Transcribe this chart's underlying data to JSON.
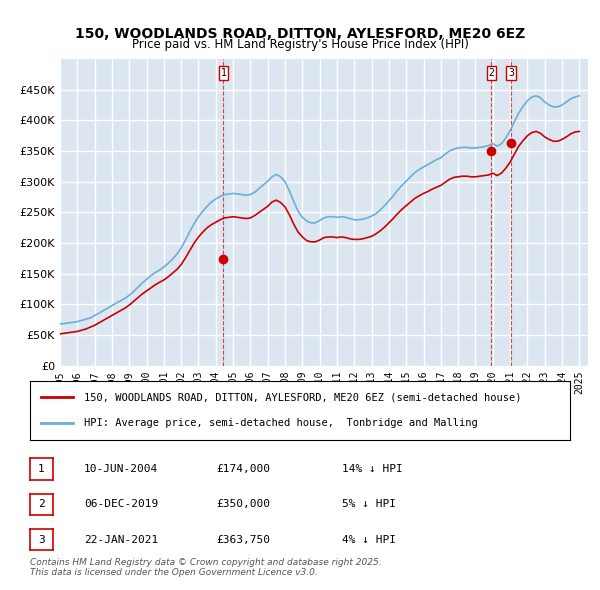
{
  "title": "150, WOODLANDS ROAD, DITTON, AYLESFORD, ME20 6EZ",
  "subtitle": "Price paid vs. HM Land Registry's House Price Index (HPI)",
  "ylabel": "",
  "ylim": [
    0,
    500000
  ],
  "yticks": [
    0,
    50000,
    100000,
    150000,
    200000,
    250000,
    300000,
    350000,
    400000,
    450000
  ],
  "xlim_start": 1995.0,
  "xlim_end": 2025.5,
  "bg_color": "#dce6f1",
  "plot_bg": "#dce6f1",
  "grid_color": "#ffffff",
  "hpi_color": "#6baed6",
  "price_color": "#cc0000",
  "transactions": [
    {
      "date": 2004.44,
      "price": 174000,
      "label": "1"
    },
    {
      "date": 2019.92,
      "price": 350000,
      "label": "2"
    },
    {
      "date": 2021.06,
      "price": 363750,
      "label": "3"
    }
  ],
  "transaction_labels": [
    {
      "num": "1",
      "date": "10-JUN-2004",
      "price": "£174,000",
      "pct": "14% ↓ HPI"
    },
    {
      "num": "2",
      "date": "06-DEC-2019",
      "price": "£350,000",
      "pct": "5% ↓ HPI"
    },
    {
      "num": "3",
      "date": "22-JAN-2021",
      "price": "£363,750",
      "pct": "4% ↓ HPI"
    }
  ],
  "legend_line1": "150, WOODLANDS ROAD, DITTON, AYLESFORD, ME20 6EZ (semi-detached house)",
  "legend_line2": "HPI: Average price, semi-detached house,  Tonbridge and Malling",
  "footer": "Contains HM Land Registry data © Crown copyright and database right 2025.\nThis data is licensed under the Open Government Licence v3.0.",
  "hpi_data_x": [
    1995.0,
    1995.25,
    1995.5,
    1995.75,
    1996.0,
    1996.25,
    1996.5,
    1996.75,
    1997.0,
    1997.25,
    1997.5,
    1997.75,
    1998.0,
    1998.25,
    1998.5,
    1998.75,
    1999.0,
    1999.25,
    1999.5,
    1999.75,
    2000.0,
    2000.25,
    2000.5,
    2000.75,
    2001.0,
    2001.25,
    2001.5,
    2001.75,
    2002.0,
    2002.25,
    2002.5,
    2002.75,
    2003.0,
    2003.25,
    2003.5,
    2003.75,
    2004.0,
    2004.25,
    2004.5,
    2004.75,
    2005.0,
    2005.25,
    2005.5,
    2005.75,
    2006.0,
    2006.25,
    2006.5,
    2006.75,
    2007.0,
    2007.25,
    2007.5,
    2007.75,
    2008.0,
    2008.25,
    2008.5,
    2008.75,
    2009.0,
    2009.25,
    2009.5,
    2009.75,
    2010.0,
    2010.25,
    2010.5,
    2010.75,
    2011.0,
    2011.25,
    2011.5,
    2011.75,
    2012.0,
    2012.25,
    2012.5,
    2012.75,
    2013.0,
    2013.25,
    2013.5,
    2013.75,
    2014.0,
    2014.25,
    2014.5,
    2014.75,
    2015.0,
    2015.25,
    2015.5,
    2015.75,
    2016.0,
    2016.25,
    2016.5,
    2016.75,
    2017.0,
    2017.25,
    2017.5,
    2017.75,
    2018.0,
    2018.25,
    2018.5,
    2018.75,
    2019.0,
    2019.25,
    2019.5,
    2019.75,
    2020.0,
    2020.25,
    2020.5,
    2020.75,
    2021.0,
    2021.25,
    2021.5,
    2021.75,
    2022.0,
    2022.25,
    2022.5,
    2022.75,
    2023.0,
    2023.25,
    2023.5,
    2023.75,
    2024.0,
    2024.25,
    2024.5,
    2024.75,
    2025.0
  ],
  "hpi_data_y": [
    68000,
    69000,
    70000,
    71000,
    72000,
    74000,
    76000,
    78000,
    82000,
    86000,
    90000,
    94000,
    98000,
    102000,
    106000,
    110000,
    115000,
    121000,
    128000,
    135000,
    141000,
    147000,
    152000,
    156000,
    161000,
    167000,
    174000,
    182000,
    192000,
    205000,
    219000,
    232000,
    243000,
    252000,
    260000,
    267000,
    272000,
    276000,
    279000,
    280000,
    281000,
    280000,
    279000,
    278000,
    279000,
    283000,
    289000,
    295000,
    301000,
    308000,
    312000,
    308000,
    300000,
    285000,
    268000,
    252000,
    242000,
    236000,
    233000,
    233000,
    237000,
    241000,
    243000,
    243000,
    242000,
    243000,
    242000,
    240000,
    238000,
    238000,
    239000,
    241000,
    244000,
    248000,
    254000,
    261000,
    269000,
    277000,
    286000,
    294000,
    301000,
    308000,
    315000,
    320000,
    324000,
    328000,
    332000,
    336000,
    339000,
    345000,
    350000,
    353000,
    355000,
    356000,
    356000,
    355000,
    355000,
    356000,
    357000,
    359000,
    362000,
    358000,
    362000,
    371000,
    383000,
    398000,
    412000,
    423000,
    432000,
    438000,
    440000,
    437000,
    430000,
    425000,
    422000,
    422000,
    425000,
    430000,
    435000,
    438000,
    440000
  ],
  "price_data_x": [
    1995.0,
    1995.25,
    1995.5,
    1995.75,
    1996.0,
    1996.25,
    1996.5,
    1996.75,
    1997.0,
    1997.25,
    1997.5,
    1997.75,
    1998.0,
    1998.25,
    1998.5,
    1998.75,
    1999.0,
    1999.25,
    1999.5,
    1999.75,
    2000.0,
    2000.25,
    2000.5,
    2000.75,
    2001.0,
    2001.25,
    2001.5,
    2001.75,
    2002.0,
    2002.25,
    2002.5,
    2002.75,
    2003.0,
    2003.25,
    2003.5,
    2003.75,
    2004.0,
    2004.25,
    2004.5,
    2004.75,
    2005.0,
    2005.25,
    2005.5,
    2005.75,
    2006.0,
    2006.25,
    2006.5,
    2006.75,
    2007.0,
    2007.25,
    2007.5,
    2007.75,
    2008.0,
    2008.25,
    2008.5,
    2008.75,
    2009.0,
    2009.25,
    2009.5,
    2009.75,
    2010.0,
    2010.25,
    2010.5,
    2010.75,
    2011.0,
    2011.25,
    2011.5,
    2011.75,
    2012.0,
    2012.25,
    2012.5,
    2012.75,
    2013.0,
    2013.25,
    2013.5,
    2013.75,
    2014.0,
    2014.25,
    2014.5,
    2014.75,
    2015.0,
    2015.25,
    2015.5,
    2015.75,
    2016.0,
    2016.25,
    2016.5,
    2016.75,
    2017.0,
    2017.25,
    2017.5,
    2017.75,
    2018.0,
    2018.25,
    2018.5,
    2018.75,
    2019.0,
    2019.25,
    2019.5,
    2019.75,
    2020.0,
    2020.25,
    2020.5,
    2020.75,
    2021.0,
    2021.25,
    2021.5,
    2021.75,
    2022.0,
    2022.25,
    2022.5,
    2022.75,
    2023.0,
    2023.25,
    2023.5,
    2023.75,
    2024.0,
    2024.25,
    2024.5,
    2024.75,
    2025.0
  ],
  "price_data_y": [
    52000,
    53000,
    54000,
    55000,
    56000,
    58000,
    60000,
    63000,
    66000,
    70000,
    74000,
    78000,
    82000,
    86000,
    90000,
    94000,
    99000,
    105000,
    111000,
    117000,
    122000,
    127000,
    132000,
    136000,
    140000,
    145000,
    151000,
    157000,
    165000,
    176000,
    188000,
    200000,
    210000,
    218000,
    225000,
    230000,
    234000,
    238000,
    241000,
    242000,
    243000,
    242000,
    241000,
    240000,
    241000,
    245000,
    250000,
    255000,
    260000,
    267000,
    270000,
    266000,
    259000,
    246000,
    231000,
    218000,
    210000,
    204000,
    202000,
    202000,
    205000,
    209000,
    210000,
    210000,
    209000,
    210000,
    209000,
    207000,
    206000,
    206000,
    207000,
    209000,
    211000,
    215000,
    220000,
    226000,
    233000,
    240000,
    248000,
    255000,
    261000,
    267000,
    273000,
    277000,
    281000,
    284000,
    288000,
    291000,
    294000,
    299000,
    304000,
    307000,
    308000,
    309000,
    309000,
    308000,
    308000,
    309000,
    310000,
    311000,
    314000,
    310000,
    314000,
    322000,
    332000,
    345000,
    358000,
    367000,
    375000,
    380000,
    382000,
    379000,
    373000,
    369000,
    366000,
    366000,
    369000,
    373000,
    378000,
    381000,
    382000
  ]
}
